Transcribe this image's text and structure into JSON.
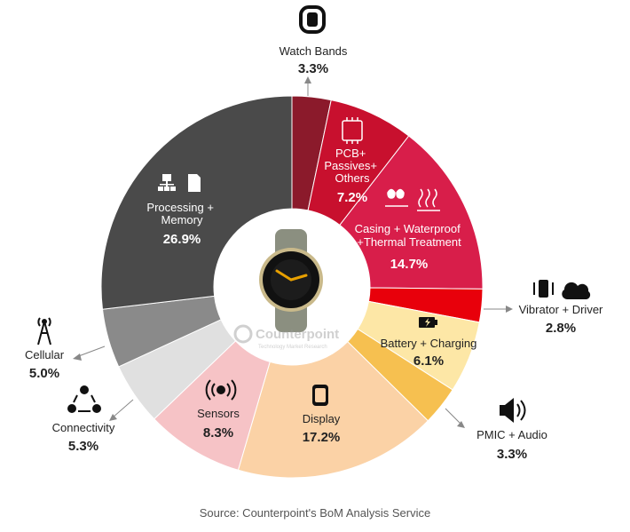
{
  "chart_data": {
    "type": "pie",
    "variant": "donut",
    "title": "",
    "categories": [
      "Watch Bands",
      "PCB+ Passives+ Others",
      "Casing + Waterproof +Thermal Treatment",
      "Vibrator + Driver",
      "Battery + Charging",
      "PMIC + Audio",
      "Display",
      "Sensors",
      "Connectivity",
      "Cellular",
      "Processing + Memory"
    ],
    "values": [
      3.3,
      7.2,
      14.7,
      2.8,
      6.1,
      3.3,
      17.2,
      8.3,
      5.3,
      5.0,
      26.9
    ],
    "value_labels": [
      "3.3%",
      "7.2%",
      "14.7%",
      "2.8%",
      "6.1%",
      "3.3%",
      "17.2%",
      "8.3%",
      "5.3%",
      "5.0%",
      "26.9%"
    ],
    "label_lines": [
      [
        "Watch Bands"
      ],
      [
        "PCB+",
        "Passives+",
        "Others"
      ],
      [
        "Casing + Waterproof",
        "+Thermal Treatment"
      ],
      [
        "Vibrator + Driver"
      ],
      [
        "Battery + Charging"
      ],
      [
        "PMIC + Audio"
      ],
      [
        "Display"
      ],
      [
        "Sensors"
      ],
      [
        "Connectivity"
      ],
      [
        "Cellular"
      ],
      [
        "Processing +",
        "Memory"
      ]
    ],
    "colors": [
      "#8b1a2b",
      "#c8102e",
      "#d81e4a",
      "#e8000b",
      "#fde7a6",
      "#f6c050",
      "#fbd2a6",
      "#f6c3c6",
      "#e0e0e0",
      "#8a8a8a",
      "#4a4a4a"
    ],
    "icons": [
      "watch-band-icon",
      "pcb-icon",
      "casing-icon",
      "vibrator-icon",
      "battery-icon",
      "speaker-icon",
      "display-icon",
      "sensor-icon",
      "connectivity-icon",
      "cell-tower-icon",
      "processor-icon"
    ],
    "start_angle_deg": 0,
    "direction": "clockwise"
  },
  "watermark": {
    "brand": "Counterpoint",
    "tagline": "Technology Market Research"
  },
  "source_note": "Source: Counterpoint's BoM Analysis Service"
}
